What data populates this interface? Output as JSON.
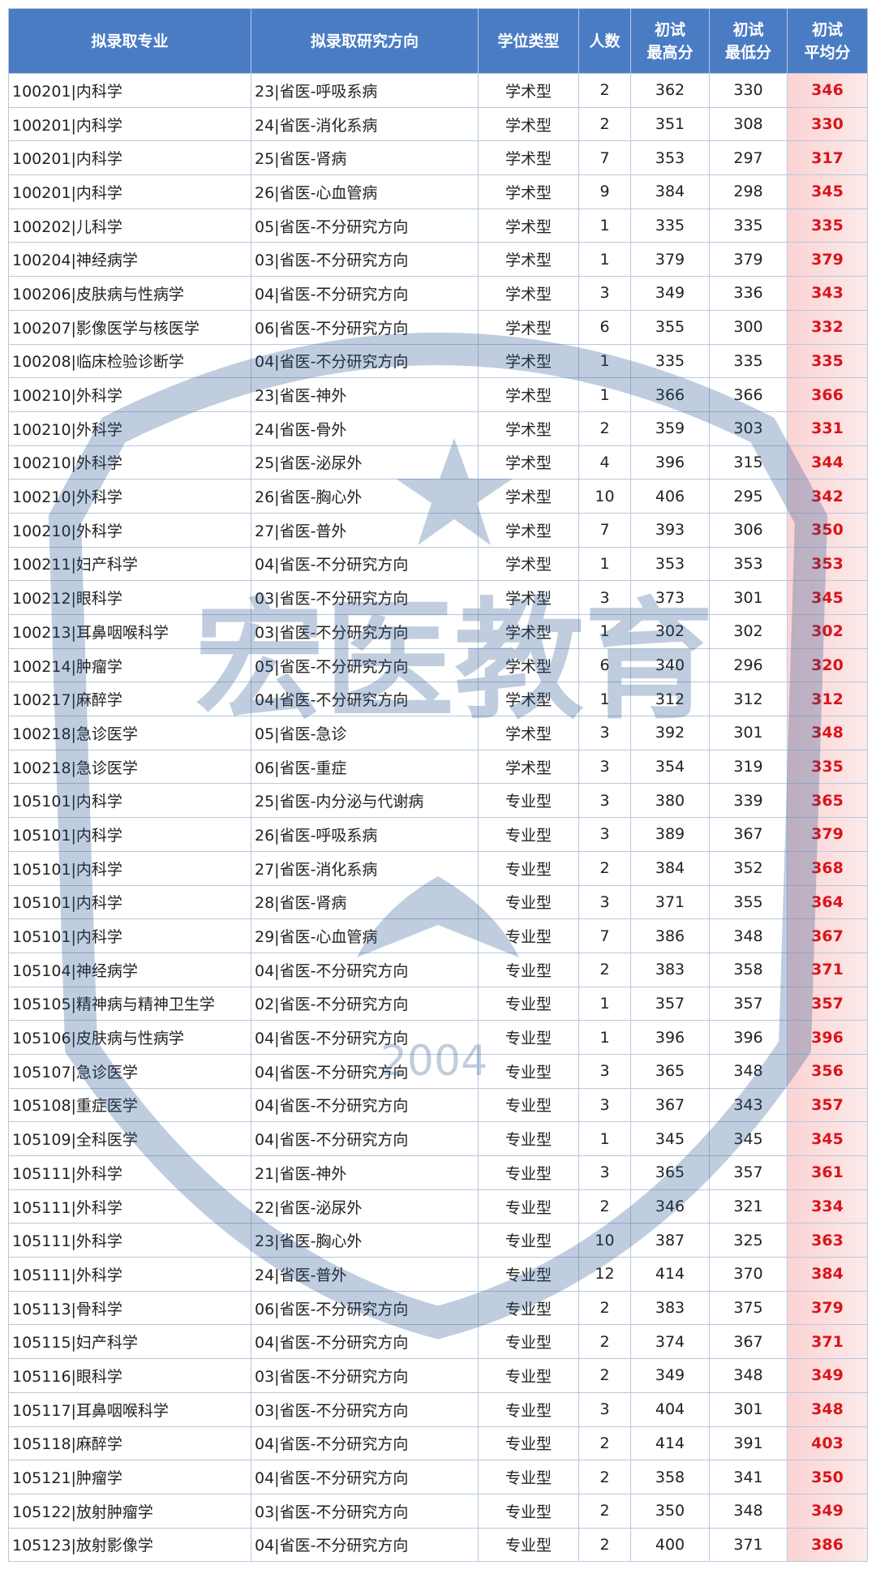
{
  "header": [
    [
      "拟录取专业"
    ],
    [
      "拟录取研究方向"
    ],
    [
      "学位类型"
    ],
    [
      "人数"
    ],
    [
      "初试",
      "最高分"
    ],
    [
      "初试",
      "最低分"
    ],
    [
      "初试",
      "平均分"
    ]
  ],
  "rows": [
    [
      "100201|内科学",
      "23|省医-呼吸系病",
      "学术型",
      2,
      362,
      330,
      346
    ],
    [
      "100201|内科学",
      "24|省医-消化系病",
      "学术型",
      2,
      351,
      308,
      330
    ],
    [
      "100201|内科学",
      "25|省医-肾病",
      "学术型",
      7,
      353,
      297,
      317
    ],
    [
      "100201|内科学",
      "26|省医-心血管病",
      "学术型",
      9,
      384,
      298,
      345
    ],
    [
      "100202|儿科学",
      "05|省医-不分研究方向",
      "学术型",
      1,
      335,
      335,
      335
    ],
    [
      "100204|神经病学",
      "03|省医-不分研究方向",
      "学术型",
      1,
      379,
      379,
      379
    ],
    [
      "100206|皮肤病与性病学",
      "04|省医-不分研究方向",
      "学术型",
      3,
      349,
      336,
      343
    ],
    [
      "100207|影像医学与核医学",
      "06|省医-不分研究方向",
      "学术型",
      6,
      355,
      300,
      332
    ],
    [
      "100208|临床检验诊断学",
      "04|省医-不分研究方向",
      "学术型",
      1,
      335,
      335,
      335
    ],
    [
      "100210|外科学",
      "23|省医-神外",
      "学术型",
      1,
      366,
      366,
      366
    ],
    [
      "100210|外科学",
      "24|省医-骨外",
      "学术型",
      2,
      359,
      303,
      331
    ],
    [
      "100210|外科学",
      "25|省医-泌尿外",
      "学术型",
      4,
      396,
      315,
      344
    ],
    [
      "100210|外科学",
      "26|省医-胸心外",
      "学术型",
      10,
      406,
      295,
      342
    ],
    [
      "100210|外科学",
      "27|省医-普外",
      "学术型",
      7,
      393,
      306,
      350
    ],
    [
      "100211|妇产科学",
      "04|省医-不分研究方向",
      "学术型",
      1,
      353,
      353,
      353
    ],
    [
      "100212|眼科学",
      "03|省医-不分研究方向",
      "学术型",
      3,
      373,
      301,
      345
    ],
    [
      "100213|耳鼻咽喉科学",
      "03|省医-不分研究方向",
      "学术型",
      1,
      302,
      302,
      302
    ],
    [
      "100214|肿瘤学",
      "05|省医-不分研究方向",
      "学术型",
      6,
      340,
      296,
      320
    ],
    [
      "100217|麻醉学",
      "04|省医-不分研究方向",
      "学术型",
      1,
      312,
      312,
      312
    ],
    [
      "100218|急诊医学",
      "05|省医-急诊",
      "学术型",
      3,
      392,
      301,
      348
    ],
    [
      "100218|急诊医学",
      "06|省医-重症",
      "学术型",
      3,
      354,
      319,
      335
    ],
    [
      "105101|内科学",
      "25|省医-内分泌与代谢病",
      "专业型",
      3,
      380,
      339,
      365
    ],
    [
      "105101|内科学",
      "26|省医-呼吸系病",
      "专业型",
      3,
      389,
      367,
      379
    ],
    [
      "105101|内科学",
      "27|省医-消化系病",
      "专业型",
      2,
      384,
      352,
      368
    ],
    [
      "105101|内科学",
      "28|省医-肾病",
      "专业型",
      3,
      371,
      355,
      364
    ],
    [
      "105101|内科学",
      "29|省医-心血管病",
      "专业型",
      7,
      386,
      348,
      367
    ],
    [
      "105104|神经病学",
      "04|省医-不分研究方向",
      "专业型",
      2,
      383,
      358,
      371
    ],
    [
      "105105|精神病与精神卫生学",
      "02|省医-不分研究方向",
      "专业型",
      1,
      357,
      357,
      357
    ],
    [
      "105106|皮肤病与性病学",
      "04|省医-不分研究方向",
      "专业型",
      1,
      396,
      396,
      396
    ],
    [
      "105107|急诊医学",
      "04|省医-不分研究方向",
      "专业型",
      3,
      365,
      348,
      356
    ],
    [
      "105108|重症医学",
      "04|省医-不分研究方向",
      "专业型",
      3,
      367,
      343,
      357
    ],
    [
      "105109|全科医学",
      "04|省医-不分研究方向",
      "专业型",
      1,
      345,
      345,
      345
    ],
    [
      "105111|外科学",
      "21|省医-神外",
      "专业型",
      3,
      365,
      357,
      361
    ],
    [
      "105111|外科学",
      "22|省医-泌尿外",
      "专业型",
      2,
      346,
      321,
      334
    ],
    [
      "105111|外科学",
      "23|省医-胸心外",
      "专业型",
      10,
      387,
      325,
      363
    ],
    [
      "105111|外科学",
      "24|省医-普外",
      "专业型",
      12,
      414,
      370,
      384
    ],
    [
      "105113|骨科学",
      "06|省医-不分研究方向",
      "专业型",
      2,
      383,
      375,
      379
    ],
    [
      "105115|妇产科学",
      "04|省医-不分研究方向",
      "专业型",
      2,
      374,
      367,
      371
    ],
    [
      "105116|眼科学",
      "03|省医-不分研究方向",
      "专业型",
      2,
      349,
      348,
      349
    ],
    [
      "105117|耳鼻咽喉科学",
      "03|省医-不分研究方向",
      "专业型",
      3,
      404,
      301,
      348
    ],
    [
      "105118|麻醉学",
      "04|省医-不分研究方向",
      "专业型",
      2,
      414,
      391,
      403
    ],
    [
      "105121|肿瘤学",
      "04|省医-不分研究方向",
      "专业型",
      2,
      358,
      341,
      350
    ],
    [
      "105122|放射肿瘤学",
      "03|省医-不分研究方向",
      "专业型",
      2,
      350,
      348,
      349
    ],
    [
      "105123|放射影像学",
      "04|省医-不分研究方向",
      "专业型",
      2,
      400,
      371,
      386
    ]
  ],
  "watermark": {
    "text": "宏医教育",
    "year": "2004"
  }
}
